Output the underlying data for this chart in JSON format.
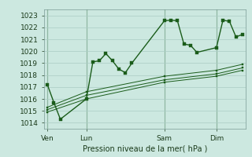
{
  "background_color": "#cce8e0",
  "grid_color": "#aaccc4",
  "line_color": "#1a5c1a",
  "title": "Pression niveau de la mer( hPa )",
  "ylabel_fontsize": 6.5,
  "xlabel_fontsize": 7.0,
  "tick_fontsize": 6.5,
  "ylim": [
    1013.5,
    1023.5
  ],
  "yticks": [
    1014,
    1015,
    1016,
    1017,
    1018,
    1019,
    1020,
    1021,
    1022,
    1023
  ],
  "day_labels": [
    "Ven",
    "Lun",
    "Sam",
    "Dim"
  ],
  "day_positions": [
    0,
    6,
    18,
    26
  ],
  "xlim": [
    -0.5,
    30.5
  ],
  "series1_x": [
    0,
    1,
    2,
    6,
    7,
    8,
    9,
    10,
    11,
    12,
    13,
    18,
    19,
    20,
    21,
    22,
    23,
    26,
    27,
    28,
    29,
    30
  ],
  "series1_y": [
    1017.2,
    1015.7,
    1014.3,
    1016.0,
    1019.1,
    1019.2,
    1019.8,
    1019.2,
    1018.5,
    1018.2,
    1019.0,
    1022.55,
    1022.6,
    1022.55,
    1020.6,
    1020.5,
    1019.9,
    1020.3,
    1022.6,
    1022.5,
    1021.2,
    1021.4
  ],
  "series2_x": [
    0,
    6,
    18,
    26,
    30
  ],
  "series2_y": [
    1014.9,
    1016.0,
    1017.4,
    1017.9,
    1018.4
  ],
  "series3_x": [
    0,
    6,
    18,
    26,
    30
  ],
  "series3_y": [
    1015.1,
    1016.3,
    1017.6,
    1018.1,
    1018.6
  ],
  "series4_x": [
    0,
    6,
    18,
    26,
    30
  ],
  "series4_y": [
    1015.3,
    1016.6,
    1017.9,
    1018.4,
    1018.9
  ],
  "figsize": [
    3.2,
    2.0
  ],
  "dpi": 100
}
